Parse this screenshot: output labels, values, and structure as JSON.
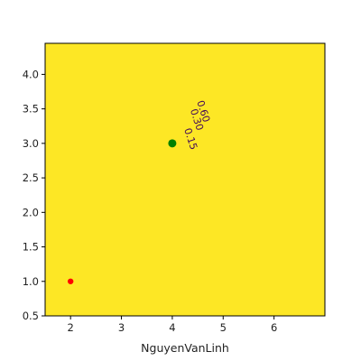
{
  "chart_data": {
    "type": "contour",
    "title": "",
    "xlabel": "NguyenVanLinh",
    "ylabel": "",
    "xlim": [
      1.5,
      7.0
    ],
    "ylim": [
      0.5,
      4.45
    ],
    "x_ticks": [
      "2",
      "3",
      "4",
      "5",
      "6"
    ],
    "y_ticks": [
      "0.5",
      "1.0",
      "1.5",
      "2.0",
      "2.5",
      "3.0",
      "3.5",
      "4.0"
    ],
    "grid": false,
    "legend": "none",
    "colormap": "viridis",
    "filled_background": true,
    "contour_line_color": "#440a57",
    "contour_labels": [
      {
        "text": "0.60",
        "x": 4.55,
        "y": 3.45
      },
      {
        "text": "0.30",
        "x": 4.42,
        "y": 3.33
      },
      {
        "text": "0.15",
        "x": 4.3,
        "y": 3.05
      }
    ],
    "points": [
      {
        "x": 4.0,
        "y": 3.0,
        "color": "#008000"
      },
      {
        "x": 2.0,
        "y": 1.0,
        "color": "#ff0000"
      }
    ]
  }
}
